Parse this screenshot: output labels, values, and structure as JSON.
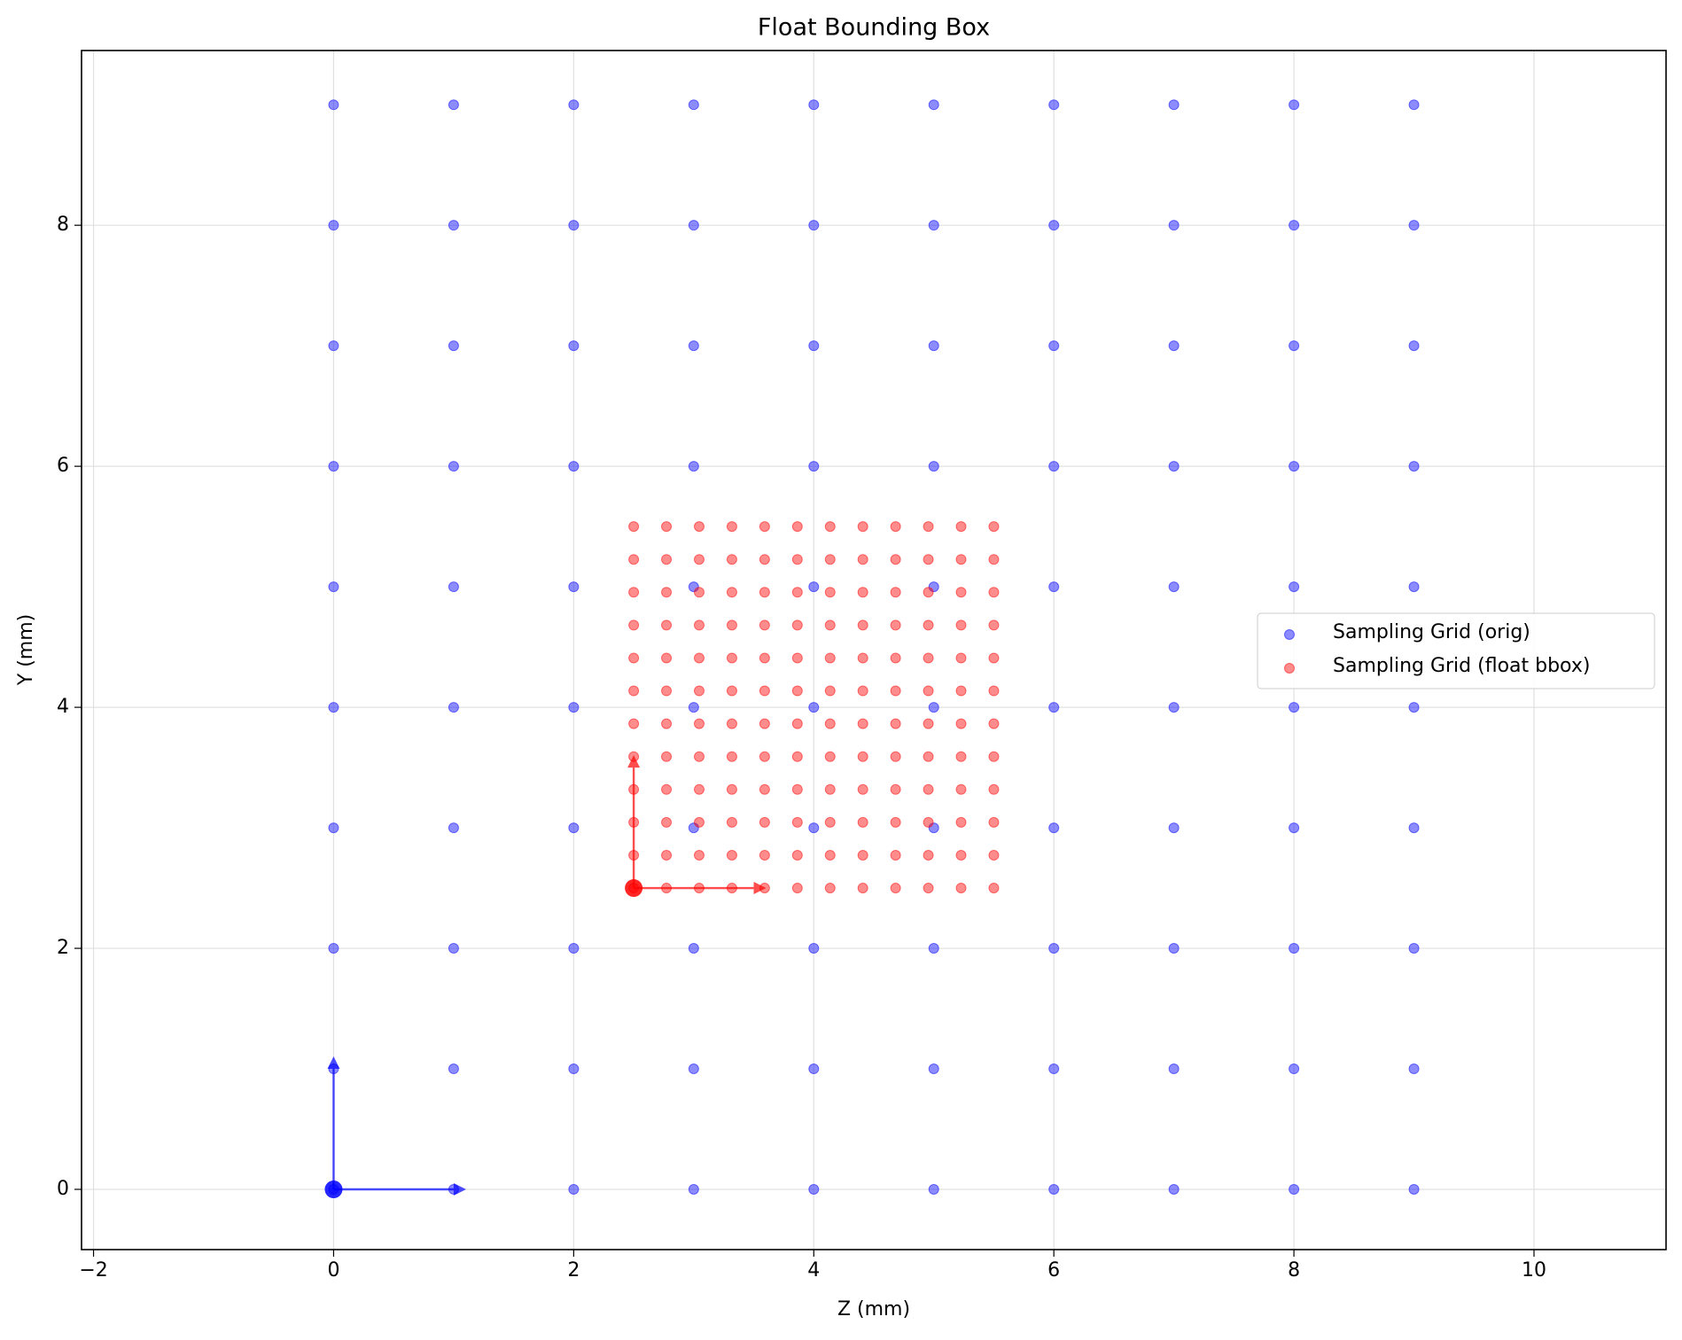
{
  "chart_data": {
    "type": "scatter",
    "title": "Float Bounding Box",
    "x_label": "Z (mm)",
    "y_label": "Y (mm)",
    "xlim": [
      -2.1,
      11.1
    ],
    "ylim": [
      -0.5,
      9.45
    ],
    "xticks": [
      {
        "value": -2,
        "label": "−2"
      },
      0,
      2,
      4,
      6,
      8,
      10
    ],
    "yticks": [
      0,
      2,
      4,
      6,
      8
    ],
    "grid": true,
    "legend": "right",
    "series": [
      {
        "name": "Sampling Grid (orig)",
        "color": "#0000ff",
        "x": [
          0,
          1,
          2,
          3,
          4,
          5,
          6,
          7,
          8,
          9,
          0,
          1,
          2,
          3,
          4,
          5,
          6,
          7,
          8,
          9,
          0,
          1,
          2,
          3,
          4,
          5,
          6,
          7,
          8,
          9,
          0,
          1,
          2,
          3,
          4,
          5,
          6,
          7,
          8,
          9,
          0,
          1,
          2,
          3,
          4,
          5,
          6,
          7,
          8,
          9,
          0,
          1,
          2,
          3,
          4,
          5,
          6,
          7,
          8,
          9,
          0,
          1,
          2,
          3,
          4,
          5,
          6,
          7,
          8,
          9,
          0,
          1,
          2,
          3,
          4,
          5,
          6,
          7,
          8,
          9,
          0,
          1,
          2,
          3,
          4,
          5,
          6,
          7,
          8,
          9,
          0,
          1,
          2,
          3,
          4,
          5,
          6,
          7,
          8,
          9
        ],
        "values": [
          0,
          0,
          0,
          0,
          0,
          0,
          0,
          0,
          0,
          0,
          1,
          1,
          1,
          1,
          1,
          1,
          1,
          1,
          1,
          1,
          2,
          2,
          2,
          2,
          2,
          2,
          2,
          2,
          2,
          2,
          3,
          3,
          3,
          3,
          3,
          3,
          3,
          3,
          3,
          3,
          4,
          4,
          4,
          4,
          4,
          4,
          4,
          4,
          4,
          4,
          5,
          5,
          5,
          5,
          5,
          5,
          5,
          5,
          5,
          5,
          6,
          6,
          6,
          6,
          6,
          6,
          6,
          6,
          6,
          6,
          7,
          7,
          7,
          7,
          7,
          7,
          7,
          7,
          7,
          7,
          8,
          8,
          8,
          8,
          8,
          8,
          8,
          8,
          8,
          8,
          9,
          9,
          9,
          9,
          9,
          9,
          9,
          9,
          9,
          9
        ]
      },
      {
        "name": "Sampling Grid (float bbox)",
        "color": "#ff0000",
        "x": [
          2.5,
          2.7727,
          3.0455,
          3.3182,
          3.5909,
          3.8636,
          4.1364,
          4.4091,
          4.6818,
          4.9545,
          5.2273,
          5.5,
          2.5,
          2.7727,
          3.0455,
          3.3182,
          3.5909,
          3.8636,
          4.1364,
          4.4091,
          4.6818,
          4.9545,
          5.2273,
          5.5,
          2.5,
          2.7727,
          3.0455,
          3.3182,
          3.5909,
          3.8636,
          4.1364,
          4.4091,
          4.6818,
          4.9545,
          5.2273,
          5.5,
          2.5,
          2.7727,
          3.0455,
          3.3182,
          3.5909,
          3.8636,
          4.1364,
          4.4091,
          4.6818,
          4.9545,
          5.2273,
          5.5,
          2.5,
          2.7727,
          3.0455,
          3.3182,
          3.5909,
          3.8636,
          4.1364,
          4.4091,
          4.6818,
          4.9545,
          5.2273,
          5.5,
          2.5,
          2.7727,
          3.0455,
          3.3182,
          3.5909,
          3.8636,
          4.1364,
          4.4091,
          4.6818,
          4.9545,
          5.2273,
          5.5,
          2.5,
          2.7727,
          3.0455,
          3.3182,
          3.5909,
          3.8636,
          4.1364,
          4.4091,
          4.6818,
          4.9545,
          5.2273,
          5.5,
          2.5,
          2.7727,
          3.0455,
          3.3182,
          3.5909,
          3.8636,
          4.1364,
          4.4091,
          4.6818,
          4.9545,
          5.2273,
          5.5,
          2.5,
          2.7727,
          3.0455,
          3.3182,
          3.5909,
          3.8636,
          4.1364,
          4.4091,
          4.6818,
          4.9545,
          5.2273,
          5.5,
          2.5,
          2.7727,
          3.0455,
          3.3182,
          3.5909,
          3.8636,
          4.1364,
          4.4091,
          4.6818,
          4.9545,
          5.2273,
          5.5,
          2.5,
          2.7727,
          3.0455,
          3.3182,
          3.5909,
          3.8636,
          4.1364,
          4.4091,
          4.6818,
          4.9545,
          5.2273,
          5.5,
          2.5,
          2.7727,
          3.0455,
          3.3182,
          3.5909,
          3.8636,
          4.1364,
          4.4091,
          4.6818,
          4.9545,
          5.2273,
          5.5
        ],
        "values": [
          2.5,
          2.5,
          2.5,
          2.5,
          2.5,
          2.5,
          2.5,
          2.5,
          2.5,
          2.5,
          2.5,
          2.5,
          2.7727,
          2.7727,
          2.7727,
          2.7727,
          2.7727,
          2.7727,
          2.7727,
          2.7727,
          2.7727,
          2.7727,
          2.7727,
          2.7727,
          3.0455,
          3.0455,
          3.0455,
          3.0455,
          3.0455,
          3.0455,
          3.0455,
          3.0455,
          3.0455,
          3.0455,
          3.0455,
          3.0455,
          3.3182,
          3.3182,
          3.3182,
          3.3182,
          3.3182,
          3.3182,
          3.3182,
          3.3182,
          3.3182,
          3.3182,
          3.3182,
          3.3182,
          3.5909,
          3.5909,
          3.5909,
          3.5909,
          3.5909,
          3.5909,
          3.5909,
          3.5909,
          3.5909,
          3.5909,
          3.5909,
          3.5909,
          3.8636,
          3.8636,
          3.8636,
          3.8636,
          3.8636,
          3.8636,
          3.8636,
          3.8636,
          3.8636,
          3.8636,
          3.8636,
          3.8636,
          4.1364,
          4.1364,
          4.1364,
          4.1364,
          4.1364,
          4.1364,
          4.1364,
          4.1364,
          4.1364,
          4.1364,
          4.1364,
          4.1364,
          4.4091,
          4.4091,
          4.4091,
          4.4091,
          4.4091,
          4.4091,
          4.4091,
          4.4091,
          4.4091,
          4.4091,
          4.4091,
          4.4091,
          4.6818,
          4.6818,
          4.6818,
          4.6818,
          4.6818,
          4.6818,
          4.6818,
          4.6818,
          4.6818,
          4.6818,
          4.6818,
          4.6818,
          4.9545,
          4.9545,
          4.9545,
          4.9545,
          4.9545,
          4.9545,
          4.9545,
          4.9545,
          4.9545,
          4.9545,
          4.9545,
          4.9545,
          5.2273,
          5.2273,
          5.2273,
          5.2273,
          5.2273,
          5.2273,
          5.2273,
          5.2273,
          5.2273,
          5.2273,
          5.2273,
          5.2273,
          5.5,
          5.5,
          5.5,
          5.5,
          5.5,
          5.5,
          5.5,
          5.5,
          5.5,
          5.5,
          5.5,
          5.5
        ]
      }
    ],
    "frames": [
      {
        "color": "#0000ff",
        "x": 0,
        "y": 0,
        "dx": [
          1,
          0
        ],
        "dy": [
          0,
          1
        ]
      },
      {
        "color": "#ff0000",
        "x": 2.5,
        "y": 2.5,
        "dx": [
          1,
          0
        ],
        "dy": [
          0,
          1
        ]
      }
    ]
  }
}
